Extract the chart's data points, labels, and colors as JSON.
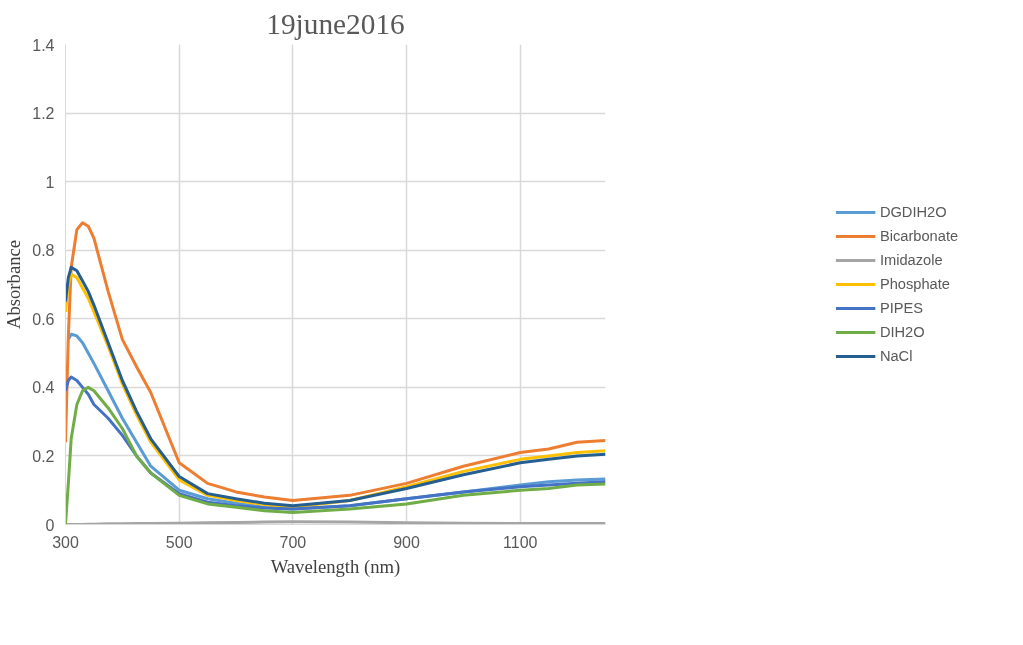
{
  "chart_data": {
    "type": "line",
    "title": "19june2016",
    "xlabel": "Wavelength (nm)",
    "ylabel": "Absorbance",
    "x": [
      300,
      305,
      310,
      320,
      330,
      340,
      350,
      375,
      400,
      425,
      450,
      500,
      550,
      600,
      650,
      700,
      800,
      900,
      1000,
      1100,
      1150,
      1200,
      1250
    ],
    "xlim": [
      300,
      1250
    ],
    "xticks": [
      300,
      500,
      700,
      900,
      1100
    ],
    "ylim": [
      0,
      1.4
    ],
    "yticks": [
      0,
      0.2,
      0.4,
      0.6,
      0.8,
      1,
      1.2,
      1.4
    ],
    "grid": true,
    "legend": "right",
    "marker": "none",
    "line_style": "solid",
    "series": [
      {
        "name": "DGDIH2O",
        "color": "#5b9bd5",
        "values": [
          null,
          0.54,
          0.555,
          0.55,
          0.53,
          0.5,
          0.47,
          0.39,
          0.31,
          0.24,
          0.17,
          0.1,
          0.075,
          0.062,
          0.05,
          0.045,
          0.055,
          0.075,
          0.095,
          0.115,
          0.125,
          0.13,
          0.133
        ]
      },
      {
        "name": "Bicarbonate",
        "color": "#ed7d31",
        "values": [
          0.24,
          0.55,
          0.75,
          0.86,
          0.88,
          0.87,
          0.835,
          0.68,
          0.54,
          0.46,
          0.385,
          0.18,
          0.12,
          0.095,
          0.08,
          0.07,
          0.085,
          0.12,
          0.17,
          0.21,
          0.22,
          0.24,
          0.245
        ]
      },
      {
        "name": "Imidazole",
        "color": "#a5a5a5",
        "values": [
          0,
          0,
          0,
          0,
          0,
          0.001,
          0.001,
          0.002,
          0.002,
          0.003,
          0.003,
          0.004,
          0.005,
          0.006,
          0.007,
          0.008,
          0.007,
          0.005,
          0.004,
          0.003,
          0.003,
          0.003,
          0.003
        ]
      },
      {
        "name": "Phosphate",
        "color": "#ffc000",
        "values": [
          0.62,
          0.7,
          0.73,
          0.72,
          0.69,
          0.66,
          0.62,
          0.52,
          0.41,
          0.32,
          0.24,
          0.13,
          0.085,
          0.07,
          0.058,
          0.05,
          0.07,
          0.11,
          0.155,
          0.19,
          0.2,
          0.21,
          0.215
        ]
      },
      {
        "name": "PIPES",
        "color": "#4472c4",
        "values": [
          0.39,
          0.42,
          0.43,
          0.42,
          0.4,
          0.38,
          0.35,
          0.31,
          0.26,
          0.2,
          0.15,
          0.09,
          0.065,
          0.055,
          0.048,
          0.045,
          0.055,
          0.075,
          0.095,
          0.11,
          0.115,
          0.12,
          0.125
        ]
      },
      {
        "name": "DIH2O",
        "color": "#70ad47",
        "values": [
          0,
          0.12,
          0.25,
          0.35,
          0.39,
          0.4,
          0.39,
          0.34,
          0.28,
          0.2,
          0.15,
          0.085,
          0.06,
          0.05,
          0.04,
          0.035,
          0.045,
          0.06,
          0.085,
          0.1,
          0.105,
          0.115,
          0.118
        ]
      },
      {
        "name": "NaCl",
        "color": "#255e91",
        "values": [
          0.65,
          0.72,
          0.75,
          0.74,
          0.71,
          0.68,
          0.64,
          0.53,
          0.42,
          0.33,
          0.25,
          0.14,
          0.09,
          0.075,
          0.062,
          0.055,
          0.07,
          0.105,
          0.145,
          0.18,
          0.19,
          0.2,
          0.205
        ]
      }
    ]
  }
}
